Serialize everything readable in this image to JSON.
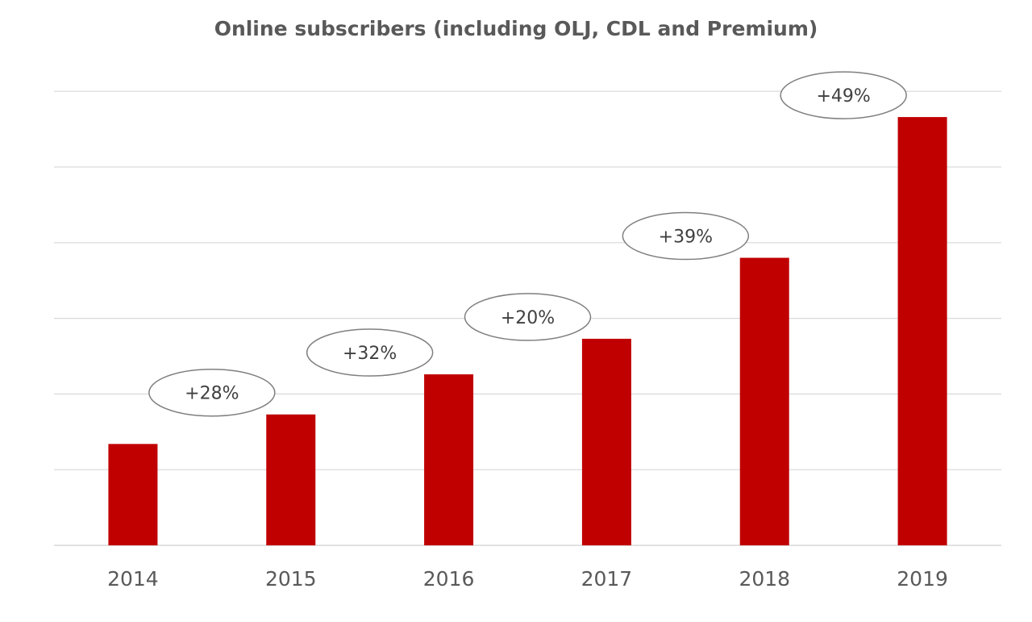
{
  "chart_data": {
    "type": "bar",
    "title": "Online subscribers (including OLJ, CDL and Premium)",
    "xlabel": "",
    "ylabel": "",
    "categories": [
      "2014",
      "2015",
      "2016",
      "2017",
      "2018",
      "2019"
    ],
    "values": [
      1.34,
      1.73,
      2.26,
      2.73,
      3.8,
      5.66
    ],
    "ylim": [
      0,
      6
    ],
    "y_axis_tick_labels_shown": false,
    "grid": true,
    "gridline_count": 6,
    "legend": "none",
    "bar_color": "#c00000",
    "growth_annotations": [
      {
        "between": [
          "2014",
          "2015"
        ],
        "label": "+28%"
      },
      {
        "between": [
          "2015",
          "2016"
        ],
        "label": "+32%"
      },
      {
        "between": [
          "2016",
          "2017"
        ],
        "label": "+20%"
      },
      {
        "between": [
          "2017",
          "2018"
        ],
        "label": "+39%"
      },
      {
        "between": [
          "2018",
          "2019"
        ],
        "label": "+49%"
      }
    ]
  }
}
